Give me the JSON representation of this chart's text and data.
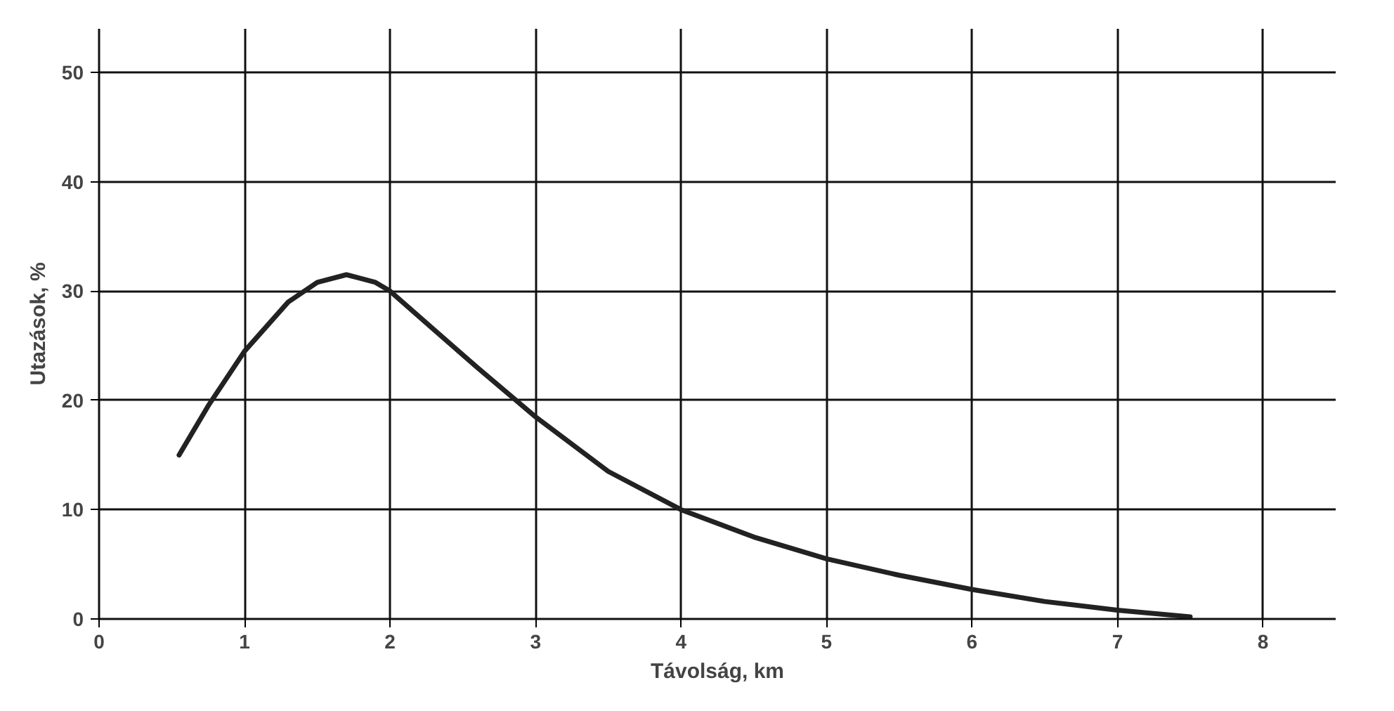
{
  "chart_data": {
    "type": "line",
    "xlabel": "Távolság, km",
    "ylabel": "Utazások, %",
    "x": [
      0.55,
      0.75,
      1.0,
      1.3,
      1.5,
      1.7,
      1.9,
      2.0,
      2.3,
      2.6,
      3.0,
      3.5,
      4.0,
      4.5,
      5.0,
      5.5,
      6.0,
      6.5,
      7.0,
      7.5
    ],
    "series": [
      {
        "color": "#222222",
        "values": [
          15,
          19.5,
          24.5,
          29,
          30.8,
          31.5,
          30.8,
          30,
          26.5,
          23,
          18.5,
          13.5,
          10,
          7.5,
          5.5,
          4,
          2.7,
          1.6,
          0.8,
          0.2
        ]
      }
    ],
    "xlim": [
      0,
      8.5
    ],
    "ylim": [
      0,
      54
    ],
    "xticks": [
      0,
      1,
      2,
      3,
      4,
      5,
      6,
      7,
      8
    ],
    "yticks": [
      0,
      10,
      20,
      30,
      40,
      50
    ],
    "grid": true,
    "line_style": "solid",
    "marker": "none"
  }
}
